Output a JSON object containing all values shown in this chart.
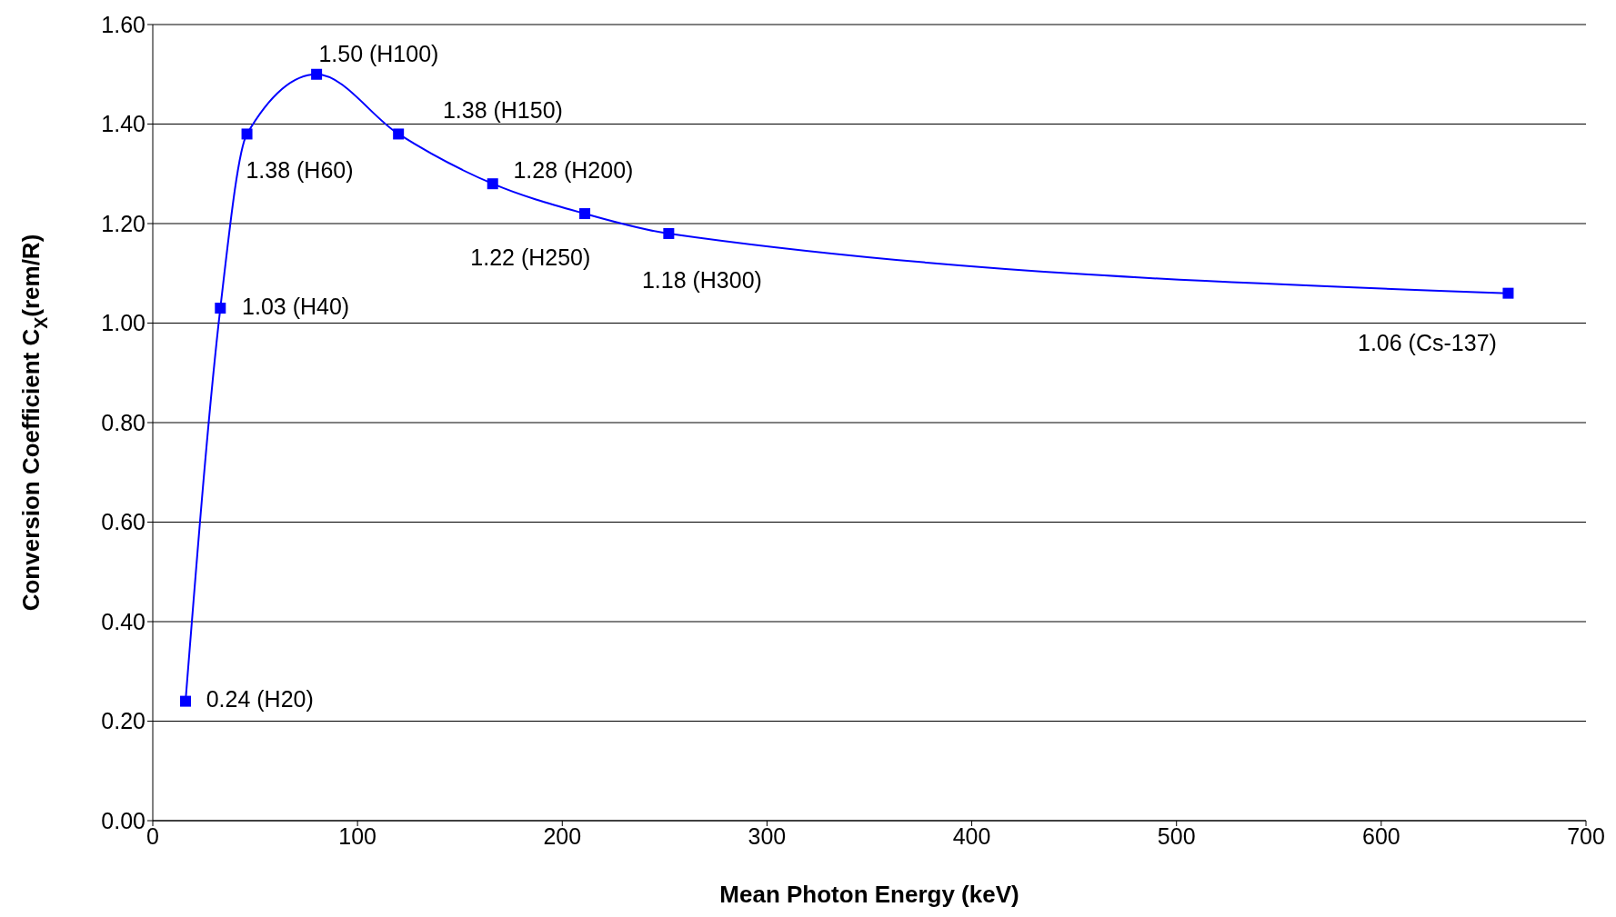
{
  "chart_data": {
    "type": "line",
    "xlabel": "Mean Photon Energy (keV)",
    "ylabel": "Conversion Coefficient C$_{X}$(rem/R)",
    "x": [
      16,
      33,
      46,
      80,
      120,
      166,
      211,
      252,
      662
    ],
    "series": [
      {
        "color": "#0000ff",
        "values": [
          0.24,
          1.03,
          1.38,
          1.5,
          1.38,
          1.28,
          1.22,
          1.18,
          1.06
        ],
        "value_labels": [
          "0.24 (H20)",
          "1.03 (H40)",
          "1.38 (H60)",
          "1.50 (H100)",
          "1.38 (H150)",
          "1.28 (H200)",
          "1.22 (H250)",
          "1.18 (H300)",
          "1.06 (Cs-137)"
        ]
      }
    ],
    "xlim": [
      0,
      700
    ],
    "xticks": [
      0,
      100,
      200,
      300,
      400,
      500,
      600,
      700
    ],
    "ylim": [
      0,
      1.6
    ],
    "yticks": [
      {
        "value": 0,
        "label": "0.00"
      },
      {
        "value": 0.2,
        "label": "0.20"
      },
      {
        "value": 0.4,
        "label": "0.40"
      },
      {
        "value": 0.6,
        "label": "0.60"
      },
      {
        "value": 0.8,
        "label": "0.80"
      },
      {
        "value": 1,
        "label": "1.00"
      },
      {
        "value": 1.2,
        "label": "1.20"
      },
      {
        "value": 1.4,
        "label": "1.40"
      },
      {
        "value": 1.6,
        "label": "1.60"
      }
    ],
    "grid": "y",
    "legend": false,
    "marker": "square",
    "line_style": "solid"
  }
}
